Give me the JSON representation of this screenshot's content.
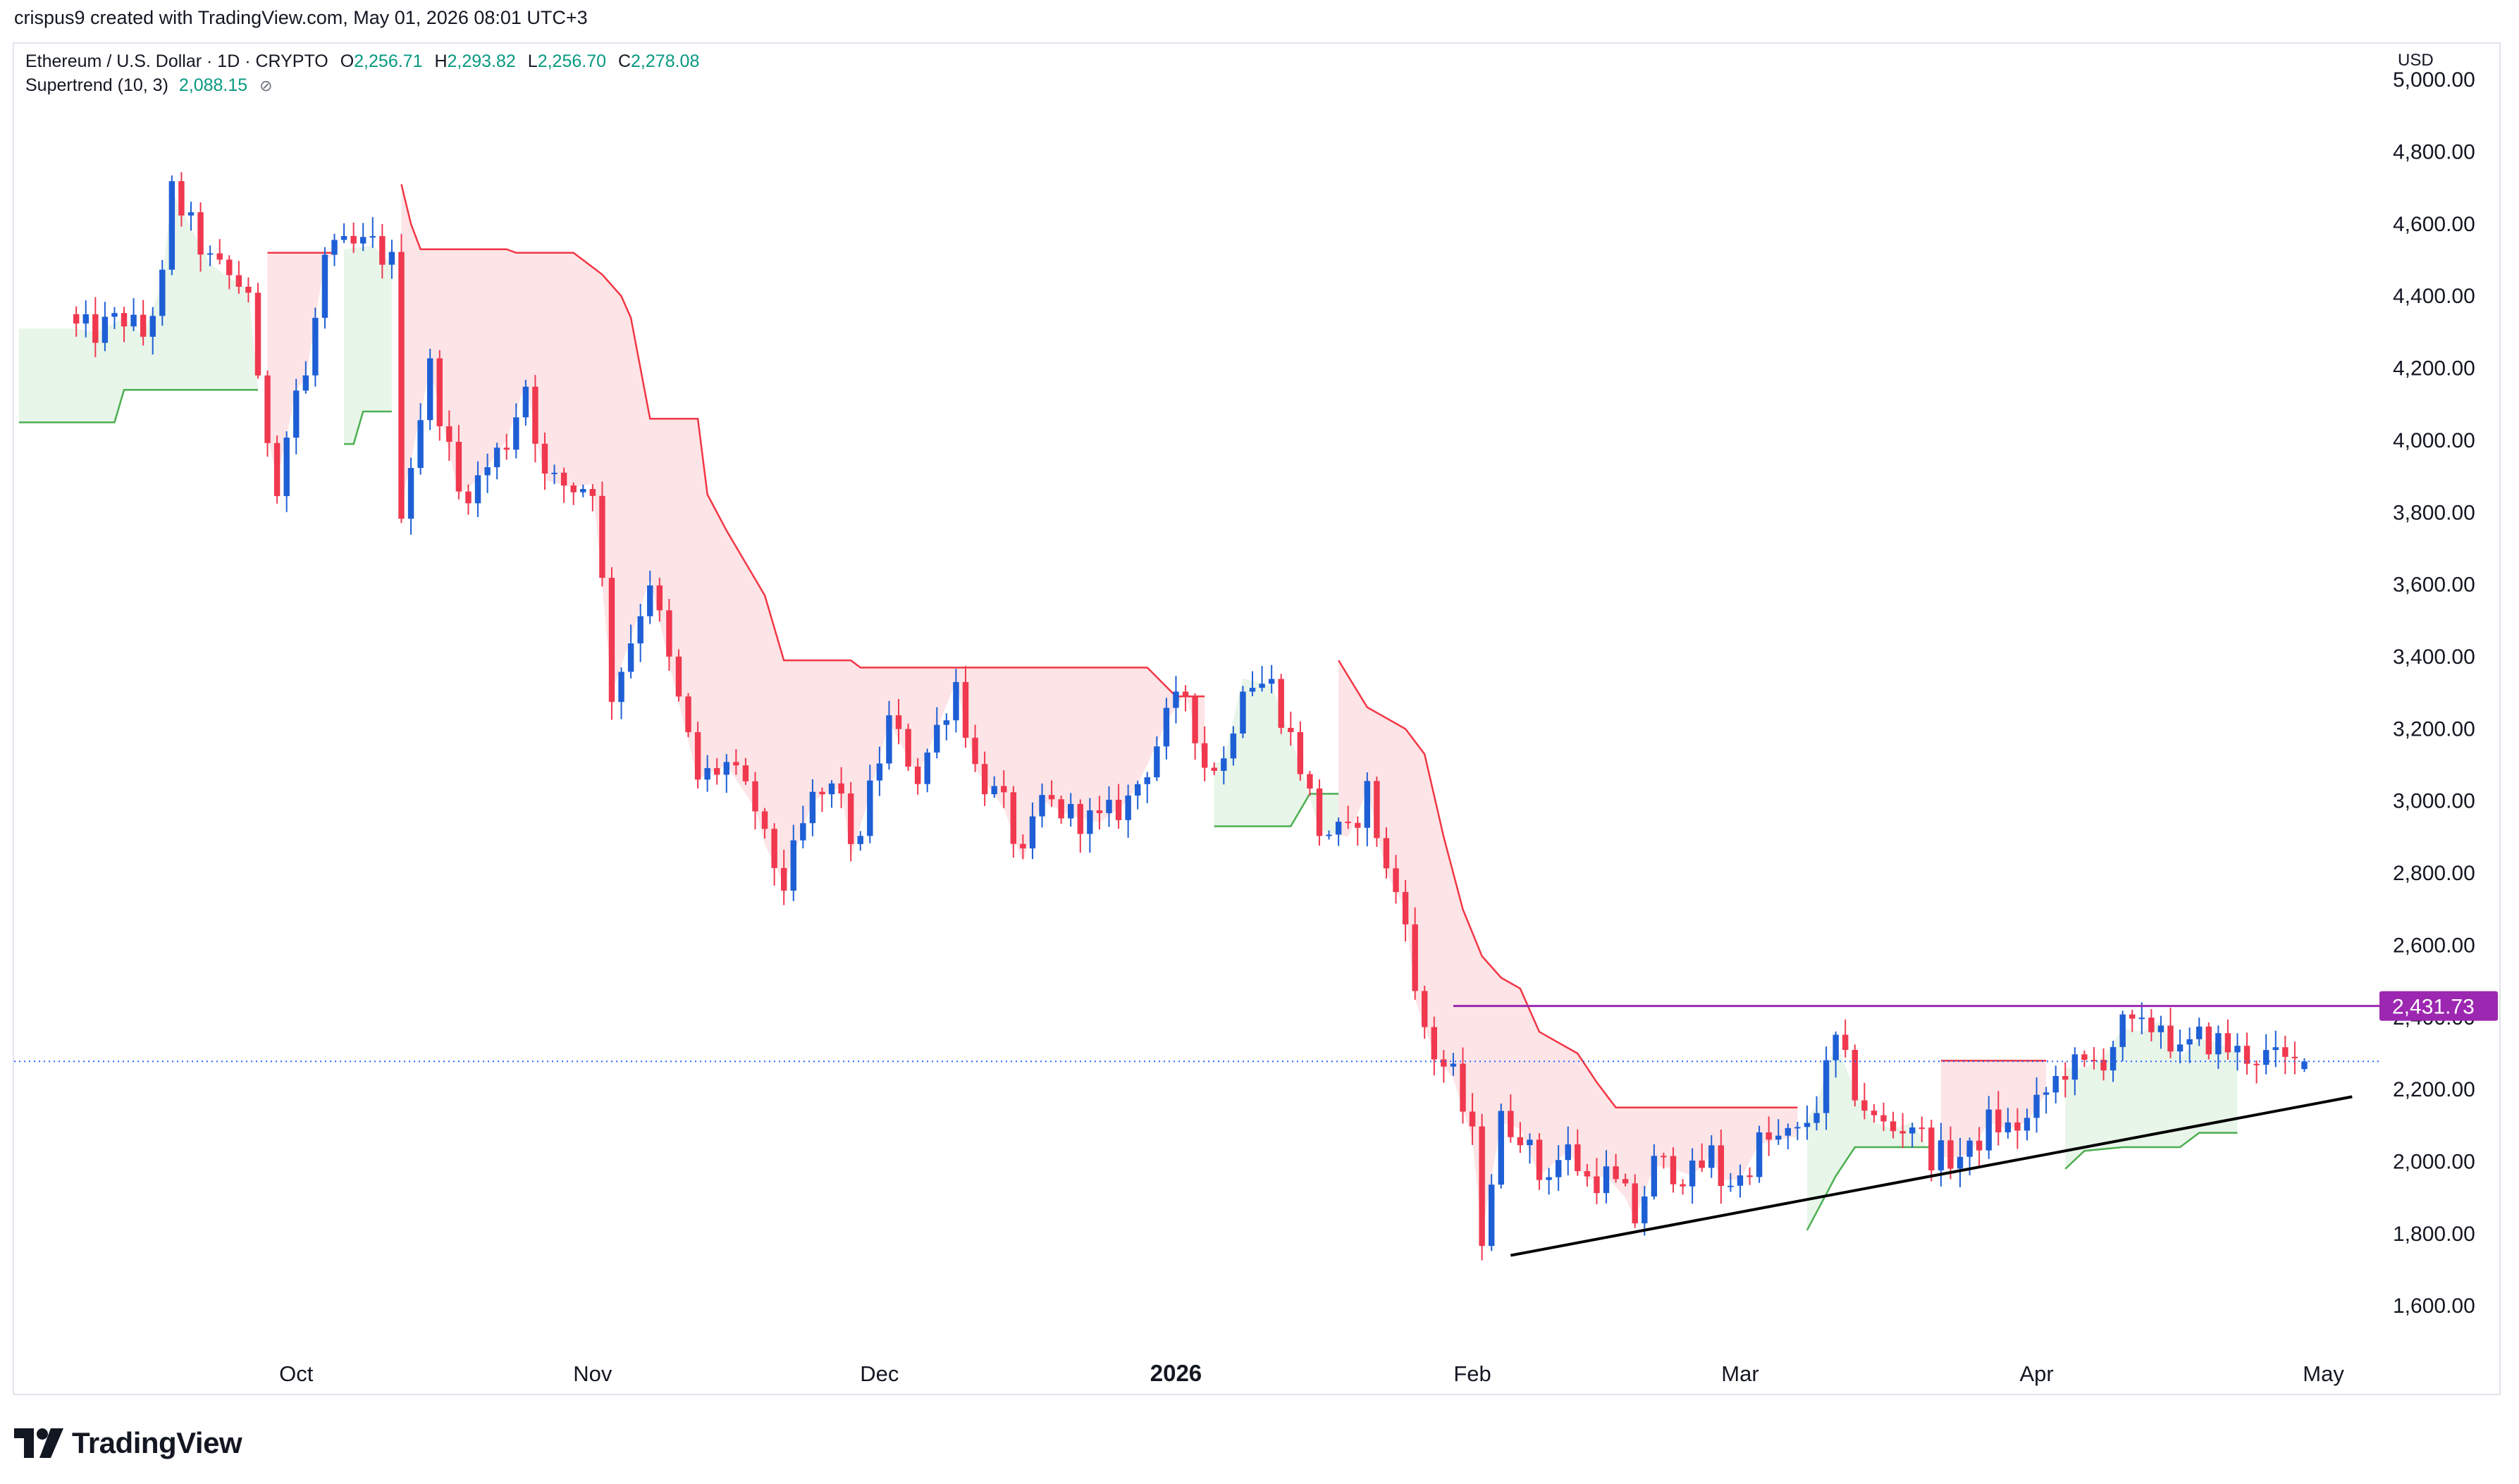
{
  "header": {
    "attribution": "crispus9 created with TradingView.com, May 01, 2026 08:01 UTC+3"
  },
  "legend": {
    "symbol": "Ethereum / U.S. Dollar · 1D · CRYPTO",
    "open_label": "O",
    "open": "2,256.71",
    "high_label": "H",
    "high": "2,293.82",
    "low_label": "L",
    "low": "2,256.70",
    "close_label": "C",
    "close": "2,278.08",
    "supertrend_label": "Supertrend (10, 3)",
    "supertrend_value": "2,088.15"
  },
  "axis": {
    "currency": "USD"
  },
  "footer": {
    "brand": "TradingView"
  },
  "colors": {
    "up": "#1e5fd6",
    "down": "#f0384e",
    "supertrend_up": "#4caf50",
    "supertrend_down": "#f23645",
    "fill_up": "#e8f5e9",
    "fill_down": "#fde4e6",
    "resistance": "#9c27b0",
    "trendline": "#000000",
    "last_price": "#2962ff"
  },
  "chart_data": {
    "type": "candlestick",
    "title": "Ethereum / U.S. Dollar",
    "ylim": [
      1450,
      5100
    ],
    "y_ticks": [
      1600,
      1800,
      2000,
      2200,
      2400,
      2600,
      2800,
      3000,
      3200,
      3400,
      3600,
      3800,
      4000,
      4200,
      4400,
      4600,
      4800,
      5000
    ],
    "y_tick_labels": [
      "1,600.00",
      "1,800.00",
      "2,000.00",
      "2,200.00",
      "2,400.00",
      "2,600.00",
      "2,800.00",
      "3,000.00",
      "3,200.00",
      "3,400.00",
      "3,600.00",
      "3,800.00",
      "4,000.00",
      "4,200.00",
      "4,400.00",
      "4,600.00",
      "4,800.00",
      "5,000.00"
    ],
    "x_ticks": [
      {
        "day": 23,
        "label": "Oct",
        "bold": false
      },
      {
        "day": 54,
        "label": "Nov",
        "bold": false
      },
      {
        "day": 84,
        "label": "Dec",
        "bold": false
      },
      {
        "day": 115,
        "label": "2026",
        "bold": true
      },
      {
        "day": 146,
        "label": "Feb",
        "bold": false
      },
      {
        "day": 174,
        "label": "Mar",
        "bold": false
      },
      {
        "day": 205,
        "label": "Apr",
        "bold": false
      },
      {
        "day": 235,
        "label": "May",
        "bold": false
      }
    ],
    "x_day_range": [
      -6.5,
      241
    ],
    "start_date": "2025-09-08",
    "close_keyframes": [
      [
        0,
        4310
      ],
      [
        2,
        4300
      ],
      [
        5,
        4340
      ],
      [
        7,
        4290
      ],
      [
        9,
        4440
      ],
      [
        10,
        4690
      ],
      [
        12,
        4590
      ],
      [
        14,
        4490
      ],
      [
        16,
        4450
      ],
      [
        18,
        4420
      ],
      [
        19,
        4140
      ],
      [
        21,
        3890
      ],
      [
        23,
        4140
      ],
      [
        24,
        4170
      ],
      [
        26,
        4500
      ],
      [
        28,
        4530
      ],
      [
        31,
        4540
      ],
      [
        33,
        4490
      ],
      [
        34,
        3820
      ],
      [
        37,
        4200
      ],
      [
        40,
        3850
      ],
      [
        42,
        3890
      ],
      [
        45,
        4000
      ],
      [
        47,
        4160
      ],
      [
        49,
        3890
      ],
      [
        52,
        3870
      ],
      [
        54,
        3880
      ],
      [
        55,
        3600
      ],
      [
        56,
        3300
      ],
      [
        58,
        3450
      ],
      [
        60,
        3620
      ],
      [
        62,
        3380
      ],
      [
        65,
        3060
      ],
      [
        68,
        3100
      ],
      [
        71,
        2980
      ],
      [
        72,
        2880
      ],
      [
        74,
        2770
      ],
      [
        77,
        3000
      ],
      [
        80,
        3040
      ],
      [
        81,
        2840
      ],
      [
        83,
        3020
      ],
      [
        85,
        3220
      ],
      [
        88,
        3070
      ],
      [
        90,
        3200
      ],
      [
        92,
        3330
      ],
      [
        94,
        3090
      ],
      [
        97,
        2980
      ],
      [
        99,
        2830
      ],
      [
        101,
        3000
      ],
      [
        104,
        2960
      ],
      [
        107,
        2940
      ],
      [
        110,
        3000
      ],
      [
        112,
        3100
      ],
      [
        114,
        3220
      ],
      [
        116,
        3300
      ],
      [
        118,
        3100
      ],
      [
        120,
        3110
      ],
      [
        122,
        3340
      ],
      [
        125,
        3320
      ],
      [
        128,
        3100
      ],
      [
        130,
        2920
      ],
      [
        133,
        2900
      ],
      [
        135,
        3030
      ],
      [
        137,
        2800
      ],
      [
        139,
        2700
      ],
      [
        140,
        2450
      ],
      [
        142,
        2300
      ],
      [
        144,
        2230
      ],
      [
        146,
        2060
      ],
      [
        147,
        1800
      ],
      [
        149,
        2110
      ],
      [
        151,
        2090
      ],
      [
        153,
        1960
      ],
      [
        156,
        2030
      ],
      [
        158,
        1950
      ],
      [
        160,
        1960
      ],
      [
        162,
        1900
      ],
      [
        163,
        1840
      ],
      [
        165,
        1990
      ],
      [
        167,
        1980
      ],
      [
        169,
        1960
      ],
      [
        171,
        2020
      ],
      [
        172,
        1950
      ],
      [
        174,
        1950
      ],
      [
        176,
        2050
      ],
      [
        178,
        2060
      ],
      [
        180,
        2070
      ],
      [
        182,
        2160
      ],
      [
        184,
        2330
      ],
      [
        186,
        2200
      ],
      [
        188,
        2110
      ],
      [
        190,
        2090
      ],
      [
        192,
        2110
      ],
      [
        194,
        2020
      ],
      [
        196,
        2010
      ],
      [
        198,
        2020
      ],
      [
        200,
        2110
      ],
      [
        202,
        2090
      ],
      [
        204,
        2110
      ],
      [
        206,
        2190
      ],
      [
        208,
        2260
      ],
      [
        210,
        2260
      ],
      [
        212,
        2290
      ],
      [
        214,
        2370
      ],
      [
        216,
        2360
      ],
      [
        218,
        2390
      ],
      [
        220,
        2290
      ],
      [
        222,
        2340
      ],
      [
        224,
        2330
      ],
      [
        226,
        2300
      ],
      [
        229,
        2290
      ],
      [
        231,
        2270
      ],
      [
        233,
        2278
      ]
    ],
    "supertrend_segments": [
      {
        "trend": "up",
        "points": [
          [
            -6,
            4050
          ],
          [
            4,
            4050
          ],
          [
            5,
            4140
          ],
          [
            12,
            4140
          ],
          [
            19,
            4140
          ]
        ]
      },
      {
        "trend": "down",
        "points": [
          [
            20,
            4520
          ],
          [
            27,
            4520
          ]
        ]
      },
      {
        "trend": "up",
        "points": [
          [
            28,
            3990
          ],
          [
            29,
            3990
          ],
          [
            30,
            4080
          ],
          [
            33,
            4080
          ]
        ]
      },
      {
        "trend": "down",
        "points": [
          [
            34,
            4710
          ],
          [
            35,
            4600
          ],
          [
            36,
            4530
          ],
          [
            45,
            4530
          ],
          [
            46,
            4520
          ],
          [
            52,
            4520
          ],
          [
            55,
            4460
          ],
          [
            57,
            4400
          ],
          [
            58,
            4340
          ],
          [
            60,
            4060
          ],
          [
            65,
            4060
          ],
          [
            66,
            3850
          ],
          [
            68,
            3750
          ],
          [
            72,
            3570
          ],
          [
            74,
            3390
          ],
          [
            81,
            3390
          ],
          [
            82,
            3370
          ],
          [
            112,
            3370
          ],
          [
            115,
            3290
          ],
          [
            118,
            3290
          ]
        ]
      },
      {
        "trend": "up",
        "points": [
          [
            119,
            2930
          ],
          [
            127,
            2930
          ],
          [
            129,
            3020
          ],
          [
            132,
            3020
          ]
        ]
      },
      {
        "trend": "down",
        "points": [
          [
            132,
            3390
          ],
          [
            135,
            3260
          ],
          [
            139,
            3200
          ],
          [
            141,
            3130
          ],
          [
            143,
            2900
          ],
          [
            145,
            2700
          ],
          [
            147,
            2570
          ],
          [
            149,
            2510
          ],
          [
            151,
            2480
          ],
          [
            153,
            2360
          ],
          [
            157,
            2300
          ],
          [
            159,
            2220
          ],
          [
            161,
            2150
          ],
          [
            164,
            2150
          ],
          [
            180,
            2150
          ]
        ]
      },
      {
        "trend": "up",
        "points": [
          [
            181,
            1810
          ],
          [
            184,
            1960
          ],
          [
            186,
            2040
          ],
          [
            189,
            2040
          ],
          [
            194,
            2040
          ]
        ]
      },
      {
        "trend": "down",
        "points": [
          [
            195,
            2280
          ],
          [
            206,
            2280
          ]
        ]
      },
      {
        "trend": "up",
        "points": [
          [
            208,
            1980
          ],
          [
            210,
            2030
          ],
          [
            214,
            2040
          ],
          [
            220,
            2040
          ],
          [
            222,
            2080
          ],
          [
            226,
            2080
          ]
        ]
      }
    ],
    "resistance_level": 2431.73,
    "resistance_label": "2,431.73",
    "resistance_from_day": 144,
    "last_price": 2278.08,
    "trendline": [
      [
        150,
        1740
      ],
      [
        238,
        2180
      ]
    ]
  }
}
